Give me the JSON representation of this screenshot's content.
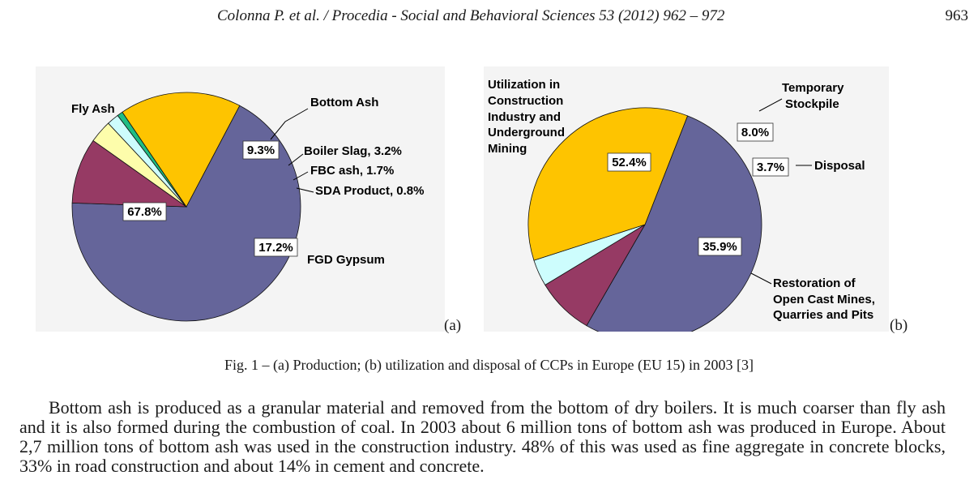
{
  "header": {
    "running_head": "Colonna P. et al. / Procedia - Social and Behavioral Sciences 53 (2012) 962 – 972",
    "page_number": "963"
  },
  "chart_data": [
    {
      "type": "pie",
      "panel": "(a)",
      "title": "Production",
      "slices": [
        {
          "label": "Fly Ash",
          "value": 67.8,
          "value_label": "67.8%",
          "color": "#65659a"
        },
        {
          "label": "Bottom Ash",
          "value": 9.3,
          "value_label": "9.3%",
          "color": "#963a64"
        },
        {
          "label": "Boiler Slag, 3.2%",
          "value": 3.2,
          "color": "#fdfdab"
        },
        {
          "label": "FBC ash, 1.7%",
          "value": 1.7,
          "color": "#cdfdfd"
        },
        {
          "label": "SDA Product, 0.8%",
          "value": 0.8,
          "color": "#1fbd84"
        },
        {
          "label": "FGD Gypsum",
          "value": 17.2,
          "value_label": "17.2%",
          "color": "#fec400"
        }
      ]
    },
    {
      "type": "pie",
      "panel": "(b)",
      "title": "Utilization and disposal",
      "slices": [
        {
          "label": "Utilization in Construction Industry and Underground Mining",
          "label_lines": [
            "Utilization in",
            "Construction",
            "Industry and",
            "Underground",
            "Mining"
          ],
          "value": 52.4,
          "value_label": "52.4%",
          "color": "#65659a"
        },
        {
          "label": "Temporary Stockpile",
          "label_lines": [
            "Temporary",
            "Stockpile"
          ],
          "value": 8.0,
          "value_label": "8.0%",
          "color": "#963a64"
        },
        {
          "label": "Disposal",
          "label_lines": [
            "Disposal"
          ],
          "value": 3.7,
          "value_label": "3.7%",
          "color": "#cdfdfd"
        },
        {
          "label": "Restoration of Open Cast Mines, Quarries and Pits",
          "label_lines": [
            "Restoration of",
            "Open Cast Mines,",
            "Quarries and Pits"
          ],
          "value": 35.9,
          "value_label": "35.9%",
          "color": "#fec400"
        }
      ]
    }
  ],
  "caption": "Fig. 1 – (a) Production; (b) utilization and disposal of CCPs in Europe (EU 15) in 2003 [3]",
  "body_paragraph": "Bottom ash is produced as a granular material and removed from the bottom of dry boilers. It is much coarser than fly ash and it is also formed during the combustion of coal. In 2003 about 6 million tons of bottom ash was produced in Europe. About 2,7 million tons of bottom ash was used in the construction industry. 48% of this was used as fine aggregate in concrete blocks, 33% in road construction and about 14% in cement and concrete."
}
